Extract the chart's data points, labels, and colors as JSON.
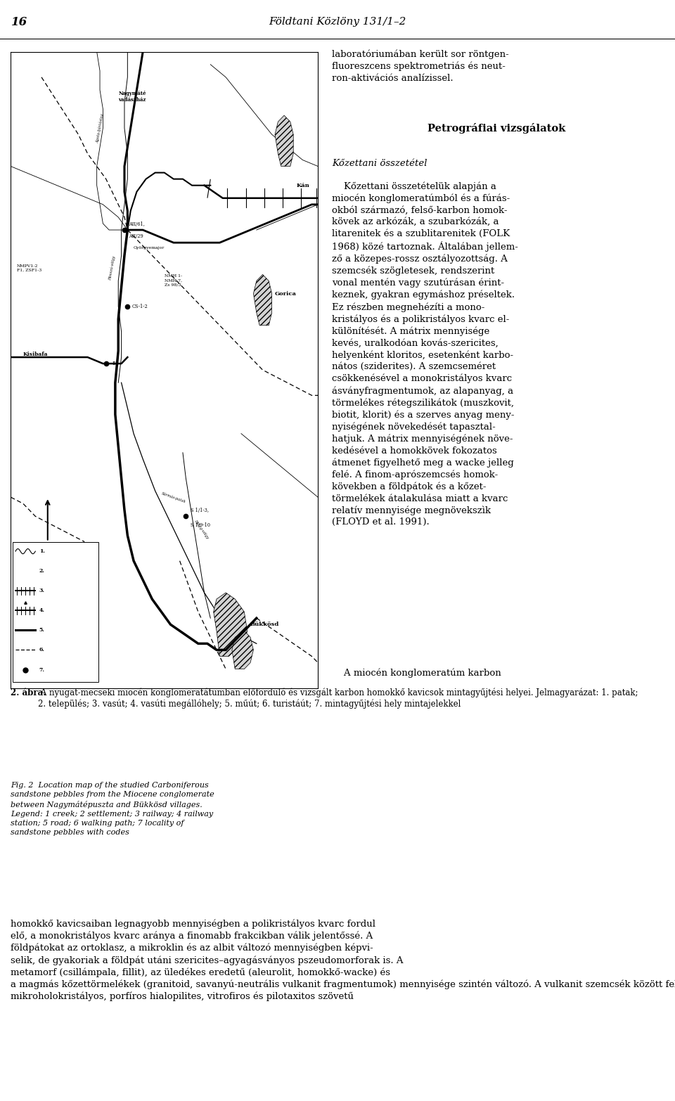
{
  "page_number": "16",
  "journal_title": "Földtani Közlöny 131/1–2",
  "right_col_intro": "laboratóriumában került sor röntgen-\nfluoreszcens spektrometriás és neut-\nron-aktivációs analízissel.",
  "section_title": "Petrográfiai vizsgálatok",
  "subsection_title": "Kőzettani összetétel",
  "body_para1": "    Kőzettani összetételük alapján a\nmiocén konglomeratúmból és a fúrás-\nokból származó, felső-karbon homok-\nkövek az arkózák, a szubarkózák, a\nlitarenitek és a szublitarenitek (FOLK\n1968) közé tartoznak. Általában jellem-\nző a közepes-rossz osztályozottság. A\nszemcsék szögletesek, rendszerint\nvonal mentén vagy szutúrásan érint-\nkeznek, gyakran egymáshoz préseltek.\nEz részben megnehézíti a mono-\nkristályos és a polikristályos kvarc el-\nkülönítését. A mátrix mennyisége\nkevés, uralkodóan kovás-szericites,\nhelyenként kloritos, esetenként karbo-\nnátos (sziderites). A szemcseméret\ncsökkenésével a monokristályos kvarc\násványfragmentumok, az alapanyag, a\ntörmelékes rétegszilikátok (muszkovit,\nbiotit, klorit) és a szerves anyag meny-\nnyiségének növekedését tapasztal-\nhatjuk. A mátrix mennyiségének növe-\nkedésével a homokkövek fokozatos\nátmenet figyelhető meg a wacke jelleg\nfelé. A finom-aprószemcsés homok-\nkövekben a földpátok és a kőzet-\ntörmelékek átalakulása miatt a kvarc\nrelatív mennyisége megnövekszìk\n(FLOYD et al. 1991).",
  "body_para2": "    A miocén konglomeratúm karbon",
  "bottom_text": "homokkő kavicsaiban legnagyobb mennyiségben a polikristályos kvarc fordul\nelő, a monokristályos kvarc aránya a finomabb frakcikban válik jelentőssé. A\nföldpátokat az ortoklasz, a mikroklin és az albit változó mennyiségben képvi-\nselik, de gyakoriak a földpát utáni szericites–agyagásványos pszeudomorforak is. A\nmetamorf (csillámpala, fillit), az üledékes eredetű (aleurolit, homokkő-wacke) és\na magmás kőzettörmelékek (granitoid, savanyú-neutrális vulkanit fragmentumok) mennyisége szintén változó. A vulkanit szemcsék között felzites, porfíros\nmikroholokristályos, porfíros hialopilites, vitrofiros és pilotaxitos szövetű",
  "caption_hu_bold": "2. ábra.",
  "caption_hu_rest": " A nyugat-mecseki miocén konglomeratátumban előforduló és vizsgált karbon homokkő kavicsok mintagyűjtési helyei. Jelmagyarázat: 1. patak; 2. település; 3. vasút; 4. vasúti megállóhely; 5. műút; 6. turistáút; 7. mintagyűjtési hely mintajelekkel",
  "caption_en": "Fig. 2  Location map of the studied Carboniferous\nsandstone pebbles from the Miocene conglomerate\nbetween Nagymátépuszta and Bükkösd villages.\nLegend: 1 creek; 2 settlement; 3 railway; 4 railway\nstation; 5 road; 6 walking path; 7 locality of\nsandstone pebbles with codes"
}
